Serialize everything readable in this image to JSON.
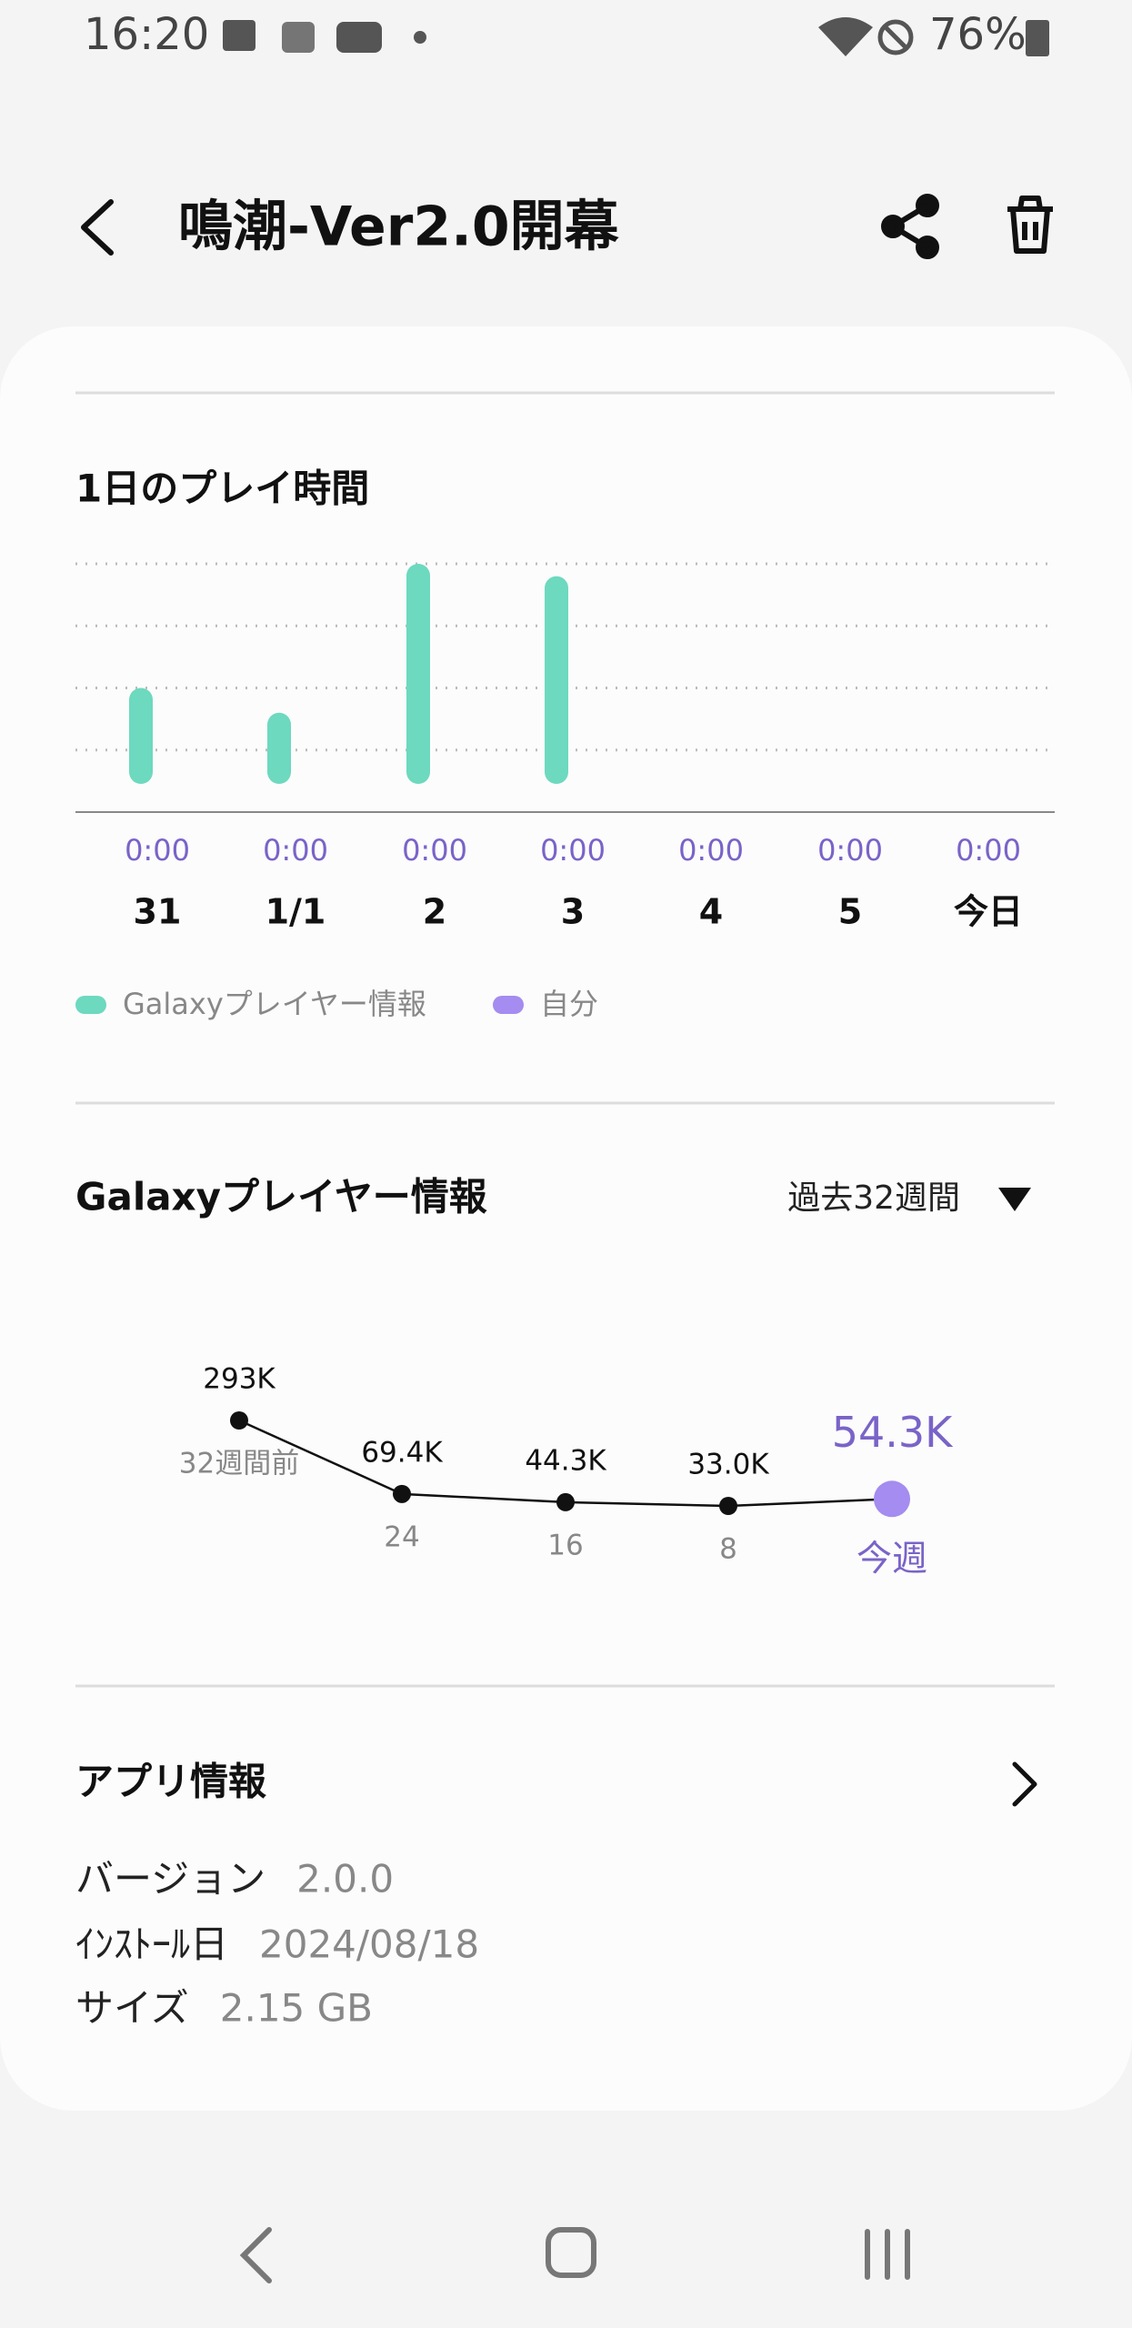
{
  "status": {
    "time": "16:20",
    "battery": "76%"
  },
  "header": {
    "title": "鳴潮-Ver2.0開幕"
  },
  "daily_chart": {
    "type": "bar",
    "title": "1日のプレイ時間",
    "categories": [
      "31",
      "1/1",
      "2",
      "3",
      "4",
      "5",
      "今日"
    ],
    "time_labels": [
      "0:00",
      "0:00",
      "0:00",
      "0:00",
      "0:00",
      "0:00",
      "0:00"
    ],
    "series": [
      {
        "name": "Galaxyプレイヤー情報",
        "color": "#6dd9bf",
        "values": [
          2.0,
          1.6,
          4.0,
          3.8,
          null,
          null,
          null
        ]
      },
      {
        "name": "自分",
        "color": "#a48cf0",
        "values": [
          null,
          null,
          null,
          null,
          null,
          null,
          null
        ]
      }
    ],
    "ylim": [
      0,
      4
    ],
    "yticks": [
      1,
      2,
      3,
      4
    ],
    "grid": true
  },
  "weekly_chart": {
    "type": "line",
    "title": "Galaxyプレイヤー情報",
    "period": "過去32週間",
    "categories": [
      "32週間前",
      "24",
      "16",
      "8",
      "今週"
    ],
    "values": [
      293000,
      69400,
      44300,
      33000,
      54300
    ],
    "value_labels": [
      "293K",
      "69.4K",
      "44.3K",
      "33.0K",
      "54.3K"
    ],
    "color": "#111111",
    "highlight_color": "#a48cf0"
  },
  "app_info": {
    "title": "アプリ情報",
    "rows": [
      [
        "バージョン",
        "2.0.0"
      ],
      [
        "ｲﾝｽﾄｰﾙ日",
        "2024/08/18"
      ],
      [
        "サイズ",
        "2.15 GB"
      ]
    ]
  }
}
